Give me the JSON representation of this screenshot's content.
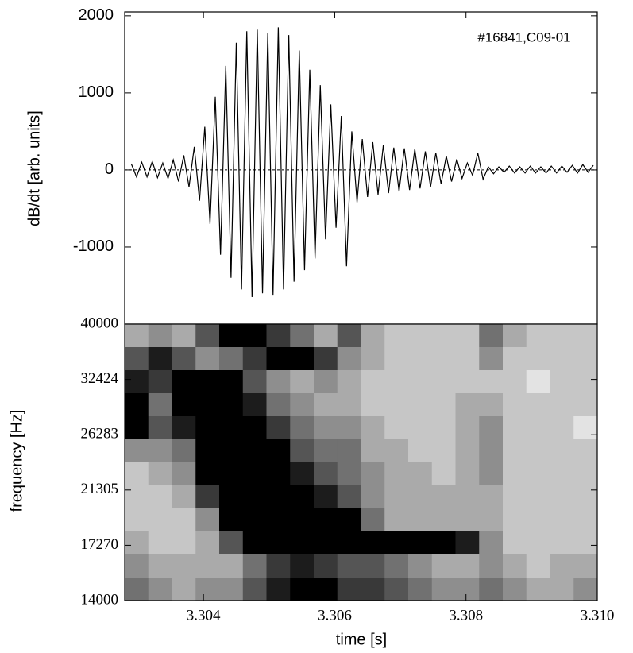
{
  "chart_data": [
    {
      "type": "line",
      "ylabel": "dB/dt [arb. units]",
      "annotation": "#16841,C09-01",
      "color": "#000000",
      "xlim": [
        3.3028,
        3.31
      ],
      "ylim": [
        -2000,
        2050
      ],
      "yticks": [
        -1000,
        0,
        1000,
        2000
      ],
      "hline": 0,
      "x": [
        3.3029,
        3.30298,
        3.30306,
        3.30314,
        3.30322,
        3.3033,
        3.30338,
        3.30346,
        3.30354,
        3.30362,
        3.3037,
        3.30378,
        3.30386,
        3.30394,
        3.30402,
        3.3041,
        3.30418,
        3.30426,
        3.30434,
        3.30442,
        3.3045,
        3.30458,
        3.30466,
        3.30474,
        3.30482,
        3.3049,
        3.30498,
        3.30506,
        3.30514,
        3.30522,
        3.3053,
        3.30538,
        3.30546,
        3.30554,
        3.30562,
        3.3057,
        3.30578,
        3.30586,
        3.30594,
        3.30602,
        3.3061,
        3.30618,
        3.30626,
        3.30634,
        3.30642,
        3.3065,
        3.30658,
        3.30666,
        3.30674,
        3.30682,
        3.3069,
        3.30698,
        3.30706,
        3.30714,
        3.30722,
        3.3073,
        3.30738,
        3.30746,
        3.30754,
        3.30762,
        3.3077,
        3.30778,
        3.30786,
        3.30794,
        3.30802,
        3.3081,
        3.30818,
        3.30826,
        3.30834,
        3.30842,
        3.3085,
        3.30858,
        3.30866,
        3.30874,
        3.30882,
        3.3089,
        3.30898,
        3.30906,
        3.30914,
        3.30922,
        3.3093,
        3.30938,
        3.30946,
        3.30954,
        3.30962,
        3.3097,
        3.30978,
        3.30986,
        3.30994
      ],
      "values": [
        80,
        -90,
        100,
        -90,
        110,
        -100,
        90,
        -110,
        130,
        -150,
        190,
        -220,
        300,
        -400,
        560,
        -700,
        950,
        -1100,
        1350,
        -1400,
        1650,
        -1550,
        1800,
        -1650,
        1820,
        -1600,
        1780,
        -1620,
        1850,
        -1550,
        1750,
        -1450,
        1550,
        -1300,
        1300,
        -1150,
        1100,
        -900,
        850,
        -750,
        700,
        -1250,
        500,
        -420,
        400,
        -350,
        360,
        -320,
        320,
        -300,
        290,
        -280,
        280,
        -260,
        270,
        -240,
        240,
        -220,
        220,
        -180,
        180,
        -150,
        140,
        -110,
        90,
        -70,
        220,
        -120,
        40,
        -50,
        40,
        -30,
        50,
        -40,
        40,
        -40,
        50,
        -40,
        40,
        -40,
        50,
        -40,
        50,
        -30,
        60,
        -40,
        70,
        -30,
        60
      ]
    },
    {
      "type": "heatmap",
      "xlabel": "time [s]",
      "ylabel": "frequency [Hz]",
      "log_y": true,
      "colormap": "gray_r",
      "xlim": [
        3.3028,
        3.31
      ],
      "xticks": [
        3.304,
        3.306,
        3.308,
        {
          "value": 3.31,
          "label": "3.310"
        }
      ],
      "ylim": [
        14000,
        40000
      ],
      "yticks": [
        14000,
        17270,
        21305,
        26283,
        32424,
        40000
      ],
      "zlim": [
        0,
        9
      ],
      "z": [
        [
          3,
          4,
          3,
          6,
          9,
          9,
          7,
          5,
          3,
          6,
          3,
          2,
          2,
          2,
          2,
          5,
          3,
          2,
          2,
          2
        ],
        [
          6,
          8,
          6,
          4,
          5,
          7,
          9,
          9,
          7,
          4,
          3,
          2,
          2,
          2,
          2,
          4,
          2,
          2,
          2,
          2
        ],
        [
          8,
          7,
          9,
          9,
          9,
          6,
          4,
          3,
          4,
          3,
          2,
          2,
          2,
          2,
          2,
          2,
          2,
          1,
          2,
          2
        ],
        [
          9,
          5,
          9,
          9,
          9,
          8,
          5,
          4,
          3,
          3,
          2,
          2,
          2,
          2,
          3,
          3,
          2,
          2,
          2,
          2
        ],
        [
          9,
          6,
          8,
          9,
          9,
          9,
          7,
          5,
          4,
          4,
          3,
          2,
          2,
          2,
          3,
          4,
          2,
          2,
          2,
          1
        ],
        [
          4,
          4,
          5,
          9,
          9,
          9,
          9,
          6,
          5,
          5,
          3,
          3,
          2,
          2,
          3,
          4,
          2,
          2,
          2,
          2
        ],
        [
          2,
          3,
          4,
          9,
          9,
          9,
          9,
          8,
          6,
          5,
          4,
          3,
          3,
          2,
          3,
          4,
          2,
          2,
          2,
          2
        ],
        [
          2,
          2,
          3,
          7,
          9,
          9,
          9,
          9,
          8,
          6,
          4,
          3,
          3,
          3,
          3,
          3,
          2,
          2,
          2,
          2
        ],
        [
          2,
          2,
          2,
          4,
          9,
          9,
          9,
          9,
          9,
          9,
          5,
          3,
          3,
          3,
          3,
          3,
          2,
          2,
          2,
          2
        ],
        [
          3,
          2,
          2,
          3,
          6,
          9,
          9,
          9,
          9,
          9,
          9,
          9,
          9,
          9,
          8,
          4,
          2,
          2,
          2,
          2
        ],
        [
          4,
          3,
          3,
          3,
          3,
          5,
          7,
          8,
          7,
          6,
          6,
          5,
          4,
          3,
          3,
          4,
          3,
          2,
          3,
          3
        ],
        [
          5,
          4,
          3,
          4,
          4,
          6,
          8,
          9,
          9,
          7,
          7,
          6,
          5,
          4,
          4,
          5,
          4,
          3,
          3,
          4
        ]
      ]
    }
  ]
}
